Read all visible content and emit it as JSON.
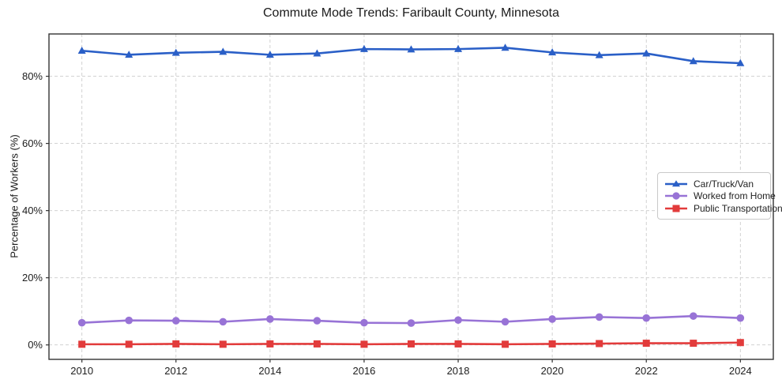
{
  "chart_data": {
    "type": "line",
    "title": "Commute Mode Trends: Faribault County, Minnesota",
    "xlabel": "",
    "ylabel": "Percentage of Workers (%)",
    "x": [
      2010,
      2011,
      2012,
      2013,
      2014,
      2015,
      2016,
      2017,
      2018,
      2019,
      2020,
      2021,
      2022,
      2023,
      2024
    ],
    "xticks": [
      2010,
      2012,
      2014,
      2016,
      2018,
      2020,
      2022,
      2024
    ],
    "yticks": [
      0,
      20,
      40,
      60,
      80
    ],
    "ytick_suffix": "%",
    "xlim": [
      2009.3,
      2024.7
    ],
    "ylim": [
      -4.3,
      92.6
    ],
    "grid": true,
    "grid_style": "dashed",
    "legend_position": "center-right",
    "background_color": "#ffffff",
    "grid_color": "#cccccc",
    "axis_color": "#333333",
    "series": [
      {
        "name": "Car/Truck/Van",
        "color": "#2a5fc7",
        "marker": "triangle",
        "values": [
          87.6,
          86.4,
          87.0,
          87.3,
          86.4,
          86.8,
          88.1,
          88.0,
          88.1,
          88.5,
          87.1,
          86.3,
          86.8,
          84.5,
          83.9
        ]
      },
      {
        "name": "Worked from Home",
        "color": "#9873d6",
        "marker": "circle",
        "values": [
          6.6,
          7.3,
          7.2,
          6.9,
          7.7,
          7.2,
          6.6,
          6.5,
          7.4,
          6.9,
          7.7,
          8.3,
          8.0,
          8.6,
          8.0
        ]
      },
      {
        "name": "Public Transportation",
        "color": "#e23b3b",
        "marker": "square",
        "values": [
          0.2,
          0.2,
          0.3,
          0.2,
          0.3,
          0.3,
          0.2,
          0.3,
          0.3,
          0.2,
          0.3,
          0.4,
          0.5,
          0.5,
          0.7
        ]
      }
    ]
  }
}
